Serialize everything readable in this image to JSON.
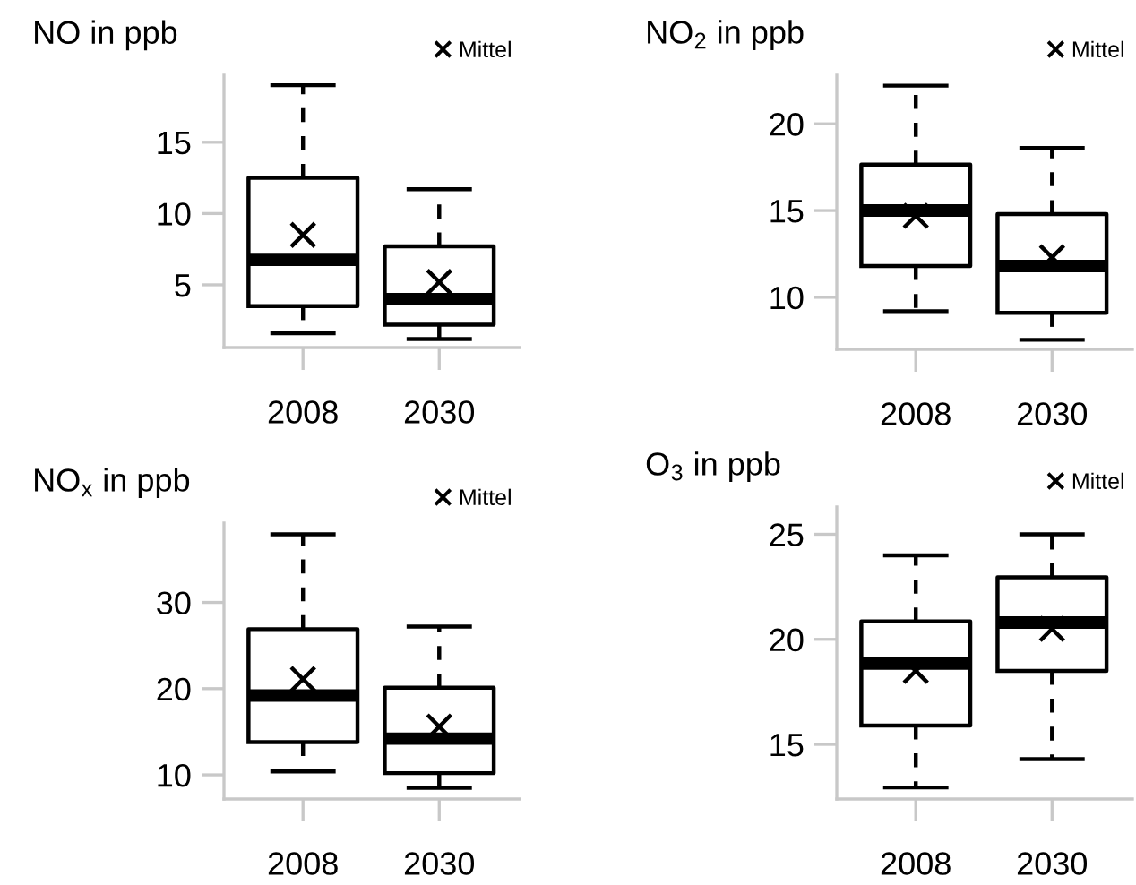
{
  "chart_data": [
    {
      "type": "box",
      "title": "NO in ppb",
      "categories": [
        "2008",
        "2030"
      ],
      "ylim": [
        0.6,
        19.7
      ],
      "yticks": [
        5,
        10,
        15
      ],
      "grid": false,
      "legend": "top right",
      "line_style": "dashed",
      "boxes": [
        {
          "low": 1.6,
          "q1": 3.5,
          "median": 6.75,
          "q3": 12.5,
          "high": 19.0
        },
        {
          "low": 1.2,
          "q1": 2.2,
          "median": 4.0,
          "q3": 7.7,
          "high": 11.7
        }
      ],
      "series": [
        {
          "type": "scatter",
          "name": "Mittel",
          "color": "#000000",
          "marker": "cross",
          "values": [
            8.5,
            5.2
          ]
        }
      ]
    },
    {
      "type": "box",
      "title": "NO$_{2}$ in ppb",
      "categories": [
        "2008",
        "2030"
      ],
      "ylim": [
        7.0,
        22.8
      ],
      "yticks": [
        10,
        15,
        20
      ],
      "grid": false,
      "legend": "top right",
      "line_style": "dashed",
      "boxes": [
        {
          "low": 9.2,
          "q1": 11.8,
          "median": 15.0,
          "q3": 17.65,
          "high": 22.2
        },
        {
          "low": 7.55,
          "q1": 9.1,
          "median": 11.8,
          "q3": 14.8,
          "high": 18.6
        }
      ],
      "series": [
        {
          "type": "scatter",
          "name": "Mittel",
          "color": "#000000",
          "marker": "cross",
          "values": [
            14.7,
            12.3
          ]
        }
      ]
    },
    {
      "type": "box",
      "title": "NO$_{x}$ in ppb",
      "categories": [
        "2008",
        "2030"
      ],
      "ylim": [
        7.2,
        39.2
      ],
      "yticks": [
        10,
        20,
        30
      ],
      "grid": false,
      "legend": "top right",
      "line_style": "dashed",
      "boxes": [
        {
          "low": 10.4,
          "q1": 13.8,
          "median": 19.2,
          "q3": 26.9,
          "high": 37.9
        },
        {
          "low": 8.5,
          "q1": 10.2,
          "median": 14.2,
          "q3": 20.1,
          "high": 27.2
        }
      ],
      "series": [
        {
          "type": "scatter",
          "name": "Mittel",
          "color": "#000000",
          "marker": "cross",
          "values": [
            21.1,
            15.6
          ]
        }
      ]
    },
    {
      "type": "box",
      "title": "O$_{3}$ in ppb",
      "categories": [
        "2008",
        "2030"
      ],
      "ylim": [
        12.4,
        26.3
      ],
      "yticks": [
        15,
        20,
        25
      ],
      "grid": false,
      "legend": "top right",
      "line_style": "dashed",
      "boxes": [
        {
          "low": 12.95,
          "q1": 15.9,
          "median": 18.85,
          "q3": 20.85,
          "high": 24.0
        },
        {
          "low": 14.3,
          "q1": 18.5,
          "median": 20.8,
          "q3": 22.95,
          "high": 25.0
        }
      ],
      "series": [
        {
          "type": "scatter",
          "name": "Mittel",
          "color": "#000000",
          "marker": "cross",
          "values": [
            18.5,
            20.5
          ]
        }
      ]
    }
  ]
}
